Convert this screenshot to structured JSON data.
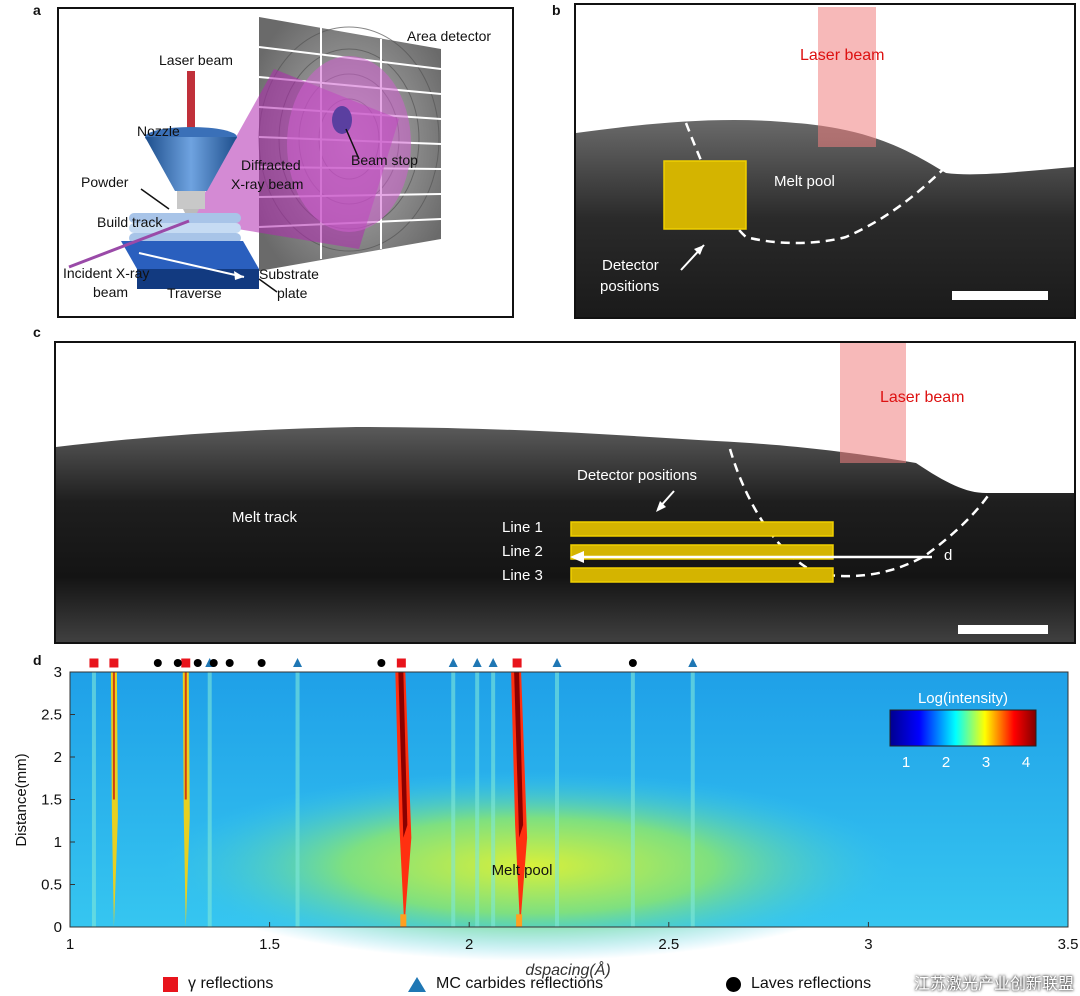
{
  "panel_labels": {
    "a": "a",
    "b": "b",
    "c": "c",
    "d": "d"
  },
  "panel_a": {
    "laser_beam": "Laser beam",
    "nozzle": "Nozzle",
    "powder": "Powder",
    "build_track": "Build track",
    "incident_line1": "Incident X-ray",
    "incident_line2": "beam",
    "traverse": "Traverse",
    "substrate_line1": "Substrate",
    "substrate_line2": "plate",
    "diffracted_line1": "Diffracted",
    "diffracted_line2": "X-ray beam",
    "beam_stop": "Beam stop",
    "area_detector": "Area detector"
  },
  "panel_b": {
    "laser_beam": "Laser beam",
    "melt_pool": "Melt pool",
    "detector_line1": "Detector",
    "detector_line2": "positions"
  },
  "panel_c": {
    "laser_beam": "Laser beam",
    "melt_track": "Melt track",
    "detector_positions": "Detector positions",
    "line1": "Line 1",
    "line2": "Line 2",
    "line3": "Line 3",
    "d_label": "d"
  },
  "chart_data": {
    "type": "heatmap",
    "xlabel": "dspacing(Å)",
    "ylabel": "Distance(mm)",
    "xlim": [
      1,
      3.5
    ],
    "ylim": [
      0,
      3
    ],
    "x_ticks": [
      1,
      1.5,
      2,
      2.5,
      3,
      3.5
    ],
    "x_tick_labels": [
      "1",
      "1.5",
      "2",
      "2.5",
      "3",
      "3.5"
    ],
    "y_ticks": [
      0,
      0.5,
      1,
      1.5,
      2,
      2.5,
      3
    ],
    "y_tick_labels": [
      "0",
      "0.5",
      "1",
      "1.5",
      "2",
      "2.5",
      "3"
    ],
    "annotation": "Melt pool",
    "colorbar": {
      "title": "Log(intensity)",
      "ticks": [
        1,
        2,
        3,
        4
      ],
      "tick_labels": [
        "1",
        "2",
        "3",
        "4"
      ],
      "colors": [
        "#00008f",
        "#0000ff",
        "#00ffff",
        "#ffff00",
        "#ff0000",
        "#800000"
      ]
    },
    "gamma_reflections": [
      1.06,
      1.11,
      1.29,
      1.83,
      2.12
    ],
    "mc_carbides_reflections": [
      1.35,
      1.57,
      1.96,
      2.02,
      2.06,
      2.22,
      2.56
    ],
    "laves_reflections": [
      1.22,
      1.27,
      1.32,
      1.36,
      1.4,
      1.48,
      1.78,
      2.41
    ],
    "strong_lines": [
      1.83,
      2.12
    ],
    "medium_lines": [
      1.11,
      1.29
    ],
    "faint_lines": [
      1.06,
      1.35,
      1.57,
      1.96,
      2.02,
      2.06,
      2.22,
      2.41,
      2.56
    ]
  },
  "legend": {
    "gamma": "γ reflections",
    "mc": "MC carbides reflections",
    "laves": "Laves reflections",
    "gamma_color": "#e8141c",
    "mc_color": "#1f77b4",
    "laves_color": "#000000"
  },
  "watermark": "江苏激光产业创新联盟"
}
